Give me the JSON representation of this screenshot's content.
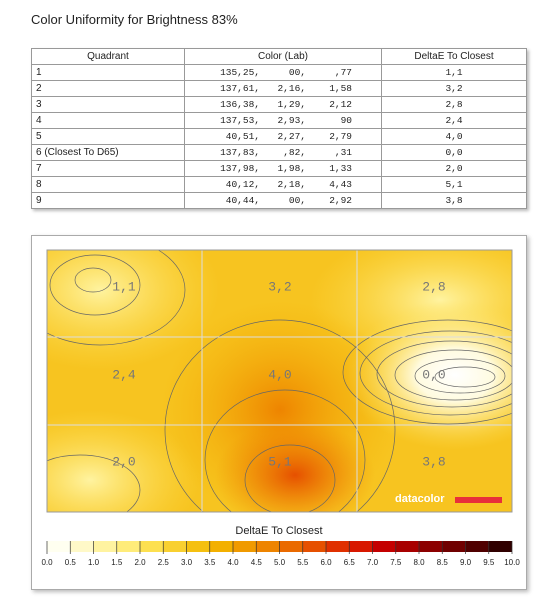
{
  "title": "Color Uniformity for Brightness 83%",
  "table": {
    "header": [
      "Quadrant",
      "Color (Lab)",
      "DeltaE To Closest"
    ],
    "rows": [
      {
        "quadrant": "1",
        "lab": [
          "135,25,",
          "00,",
          ",77"
        ],
        "delta": "1,1"
      },
      {
        "quadrant": "2",
        "lab": [
          "137,61,",
          "2,16,",
          "1,58"
        ],
        "delta": "3,2"
      },
      {
        "quadrant": "3",
        "lab": [
          "136,38,",
          "1,29,",
          "2,12"
        ],
        "delta": "2,8"
      },
      {
        "quadrant": "4",
        "lab": [
          "137,53,",
          "2,93,",
          "90"
        ],
        "delta": "2,4"
      },
      {
        "quadrant": "5",
        "lab": [
          "40,51,",
          "2,27,",
          "2,79"
        ],
        "delta": "4,0"
      },
      {
        "quadrant": "6 (Closest To D65)",
        "lab": [
          "137,83,",
          ",82,",
          ",31"
        ],
        "delta": "0,0"
      },
      {
        "quadrant": "7",
        "lab": [
          "137,98,",
          "1,98,",
          "1,33"
        ],
        "delta": "2,0"
      },
      {
        "quadrant": "8",
        "lab": [
          "40,12,",
          "2,18,",
          "4,43"
        ],
        "delta": "5,1"
      },
      {
        "quadrant": "9",
        "lab": [
          "40,44,",
          "00,",
          "2,92"
        ],
        "delta": "3,8"
      }
    ]
  },
  "heatmap": {
    "labels": [
      [
        "1,1",
        "3,2",
        "2,8"
      ],
      [
        "2,4",
        "4,0",
        "0,0"
      ],
      [
        "2,0",
        "5,1",
        "3,8"
      ]
    ],
    "brand": "datacolor"
  },
  "colorbar": {
    "title": "DeltaE To Closest",
    "ticks": [
      "0.0",
      "0.5",
      "1.0",
      "1.5",
      "2.0",
      "2.5",
      "3.0",
      "3.5",
      "4.0",
      "4.5",
      "5.0",
      "5.5",
      "6.0",
      "6.5",
      "7.0",
      "7.5",
      "8.0",
      "8.5",
      "9.0",
      "9.5",
      "10.0"
    ],
    "colors": [
      "#fffff0",
      "#fff9c8",
      "#fff3a0",
      "#ffec7a",
      "#fde050",
      "#f9d030",
      "#f5c010",
      "#f3b000",
      "#f09a00",
      "#ee8400",
      "#ea6a00",
      "#e65000",
      "#e03000",
      "#d81800",
      "#c40000",
      "#a80000",
      "#8c0000",
      "#700000",
      "#500000",
      "#300000"
    ]
  }
}
